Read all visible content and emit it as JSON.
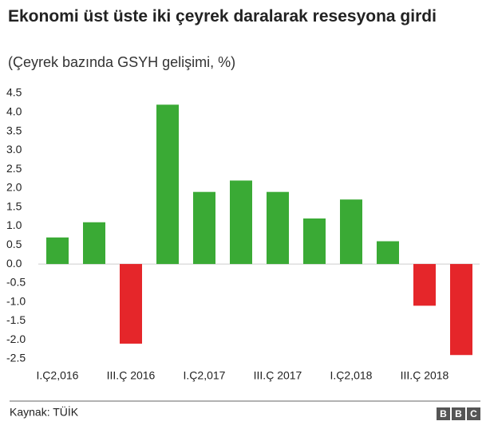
{
  "chart_data": {
    "type": "bar",
    "title": "Ekonomi üst üste iki çeyrek daralarak resesyona girdi",
    "subtitle": "(Çeyrek bazında GSYH gelişimi, %)",
    "source": "Kaynak: TÜİK",
    "logo": [
      "B",
      "B",
      "C"
    ],
    "categories": [
      "I.Ç2,016",
      null,
      "III.Ç 2016",
      null,
      "I.Ç2,017",
      null,
      "III.Ç 2017",
      null,
      "I.Ç2,018",
      null,
      "III.Ç 2018",
      null
    ],
    "values": [
      0.7,
      1.1,
      -2.1,
      4.2,
      1.9,
      2.2,
      1.9,
      1.2,
      1.7,
      0.6,
      -1.1,
      -2.4
    ],
    "color": "#3aaa35",
    "negative_color": "#e5262a",
    "ylim": [
      -2.5,
      4.5
    ],
    "yticks": [
      -2.5,
      {
        "value": -2,
        "label": "-2.0"
      },
      -1.5,
      {
        "value": -1,
        "label": "-1.0"
      },
      -0.5,
      {
        "value": 0,
        "label": "0.0"
      },
      0.5,
      {
        "value": 1,
        "label": "1.0"
      },
      1.5,
      {
        "value": 2,
        "label": "2.0"
      },
      2.5,
      {
        "value": 3,
        "label": "3.0"
      },
      3.5,
      {
        "value": 4,
        "label": "4.0"
      },
      4.5
    ],
    "grid": false
  }
}
